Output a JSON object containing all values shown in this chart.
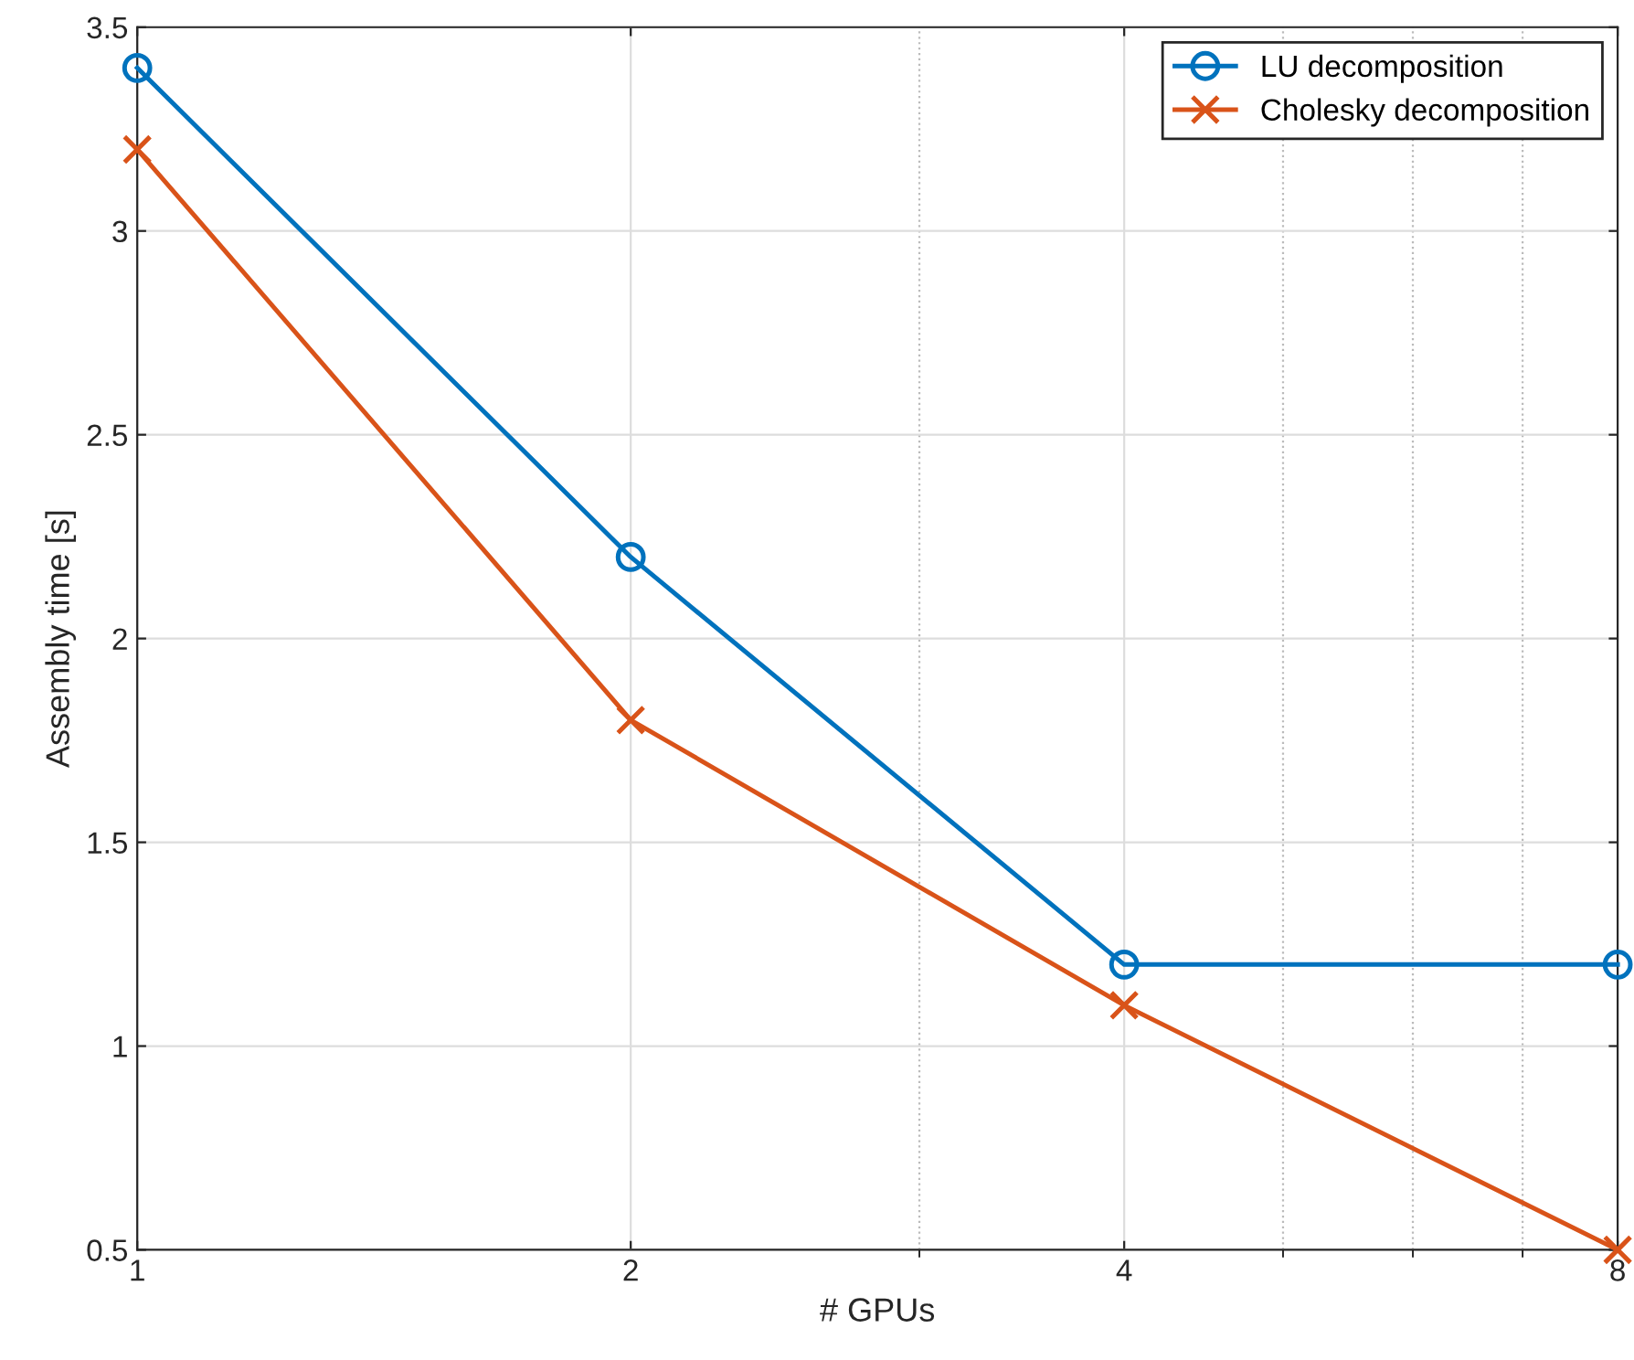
{
  "chart_data": {
    "type": "line",
    "xlabel": "# GPUs",
    "ylabel": "Assembly time [s]",
    "x": [
      1,
      2,
      4,
      8
    ],
    "series": [
      {
        "name": "LU decomposition",
        "color": "#0072bd",
        "marker": "circle",
        "values": [
          3.4,
          2.2,
          1.2,
          1.2
        ]
      },
      {
        "name": "Cholesky decomposition",
        "color": "#d95319",
        "marker": "cross",
        "values": [
          3.2,
          1.8,
          1.1,
          0.5
        ]
      }
    ],
    "log": "x",
    "xlim": [
      1,
      8
    ],
    "xticks": [
      1,
      2,
      4,
      8
    ],
    "ylim": [
      0.5,
      3.5
    ],
    "yticks": [
      0.5,
      1,
      1.5,
      2,
      2.5,
      3,
      3.5
    ],
    "grid": true,
    "legend": "top right",
    "line_style": "solid"
  }
}
